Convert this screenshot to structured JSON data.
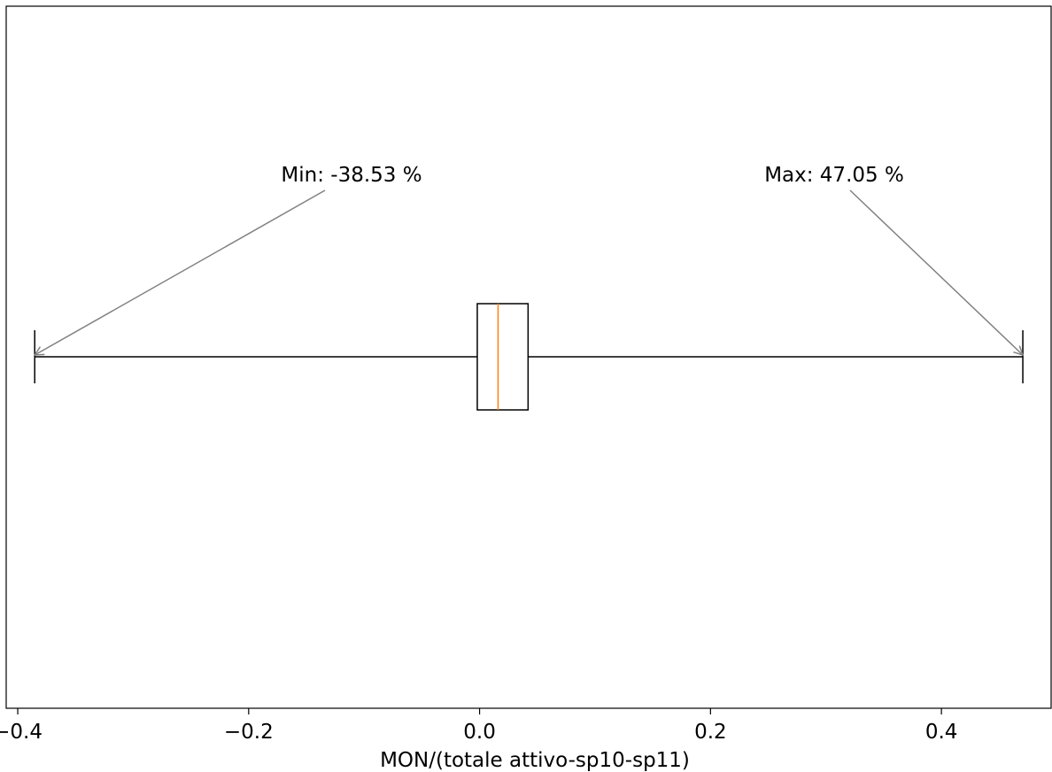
{
  "chart_data": {
    "type": "boxplot",
    "orientation": "horizontal",
    "xlabel": "MON/(totale attivo-sp10-sp11)",
    "xlim": [
      -0.41,
      0.495
    ],
    "xticks": [
      -0.4,
      -0.2,
      0.0,
      0.2,
      0.4
    ],
    "xtick_labels": [
      "−0.4",
      "−0.2",
      "0.0",
      "0.2",
      "0.4"
    ],
    "box": {
      "whisker_low": -0.3853,
      "q1": -0.002,
      "median": 0.016,
      "q3": 0.042,
      "whisker_high": 0.4705
    },
    "annotations": [
      {
        "text": "Min: -38.53 %",
        "target": "whisker_low"
      },
      {
        "text": "Max: 47.05 %",
        "target": "whisker_high"
      }
    ],
    "colors": {
      "box": "#000000",
      "median": "#ff7f0e",
      "arrow": "#808080"
    },
    "grid": false
  }
}
